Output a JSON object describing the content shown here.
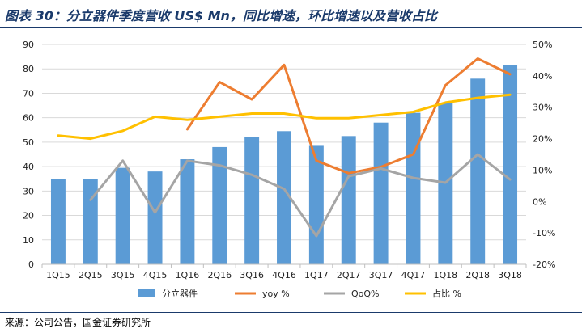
{
  "header": {
    "title": "图表 30：分立器件季度营收 US$ Mn，同比增速，环比增速以及营收占比"
  },
  "footer": {
    "source": "来源：公司公告，国金证券研究所"
  },
  "colors": {
    "bars": "#5b9bd5",
    "yoy": "#ed7d31",
    "qoq": "#a5a5a5",
    "share": "#ffc000",
    "title": "#1a3a6b"
  },
  "chart_data": {
    "type": "bar",
    "categories": [
      "1Q15",
      "2Q15",
      "3Q15",
      "4Q15",
      "1Q16",
      "2Q16",
      "3Q16",
      "4Q16",
      "1Q17",
      "2Q17",
      "3Q17",
      "4Q17",
      "1Q18",
      "2Q18",
      "3Q18"
    ],
    "series": [
      {
        "name": "分立器件",
        "type": "bar",
        "axis": "left",
        "values": [
          35,
          35,
          39.5,
          38,
          43,
          48,
          52,
          54.5,
          48.5,
          52.5,
          58,
          62,
          66,
          76,
          81.5
        ]
      },
      {
        "name": "yoy %",
        "type": "line",
        "axis": "right",
        "values": [
          null,
          null,
          null,
          null,
          23,
          38,
          32.5,
          43.5,
          13,
          9,
          11,
          15,
          37,
          45.5,
          40.5
        ]
      },
      {
        "name": "QoQ%",
        "type": "line",
        "axis": "right",
        "values": [
          null,
          0.5,
          13,
          -3.5,
          13,
          11.5,
          8.5,
          4,
          -11,
          8,
          10.5,
          7.5,
          6,
          15,
          7
        ]
      },
      {
        "name": "占比 %",
        "type": "line",
        "axis": "right",
        "values": [
          21,
          20,
          22.5,
          27,
          26,
          27,
          28,
          28,
          26.5,
          26.5,
          27.5,
          28.5,
          31.5,
          33,
          34
        ]
      }
    ],
    "y_left": {
      "min": 0,
      "max": 90,
      "ticks": [
        "0",
        "10",
        "20",
        "30",
        "40",
        "50",
        "60",
        "70",
        "80",
        "90"
      ]
    },
    "y_right": {
      "min": -20,
      "max": 50,
      "ticks": [
        "-20%",
        "-10%",
        "0%",
        "10%",
        "20%",
        "30%",
        "40%",
        "50%"
      ]
    },
    "grid": true,
    "legend": "bottom"
  }
}
